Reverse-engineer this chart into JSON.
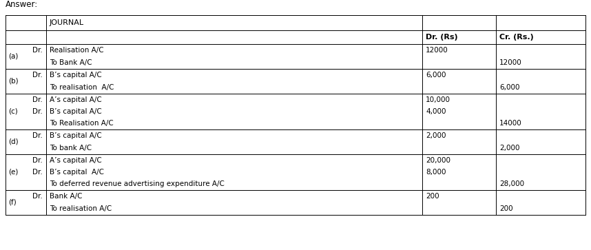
{
  "title": "Answer:",
  "header_label": "JOURNAL",
  "col_headers_dr": "Dr. (Rs)",
  "col_headers_cr": "Cr. (Rs.)",
  "rows": [
    {
      "label": "(a)",
      "entries": [
        {
          "text": "Realisation A/C",
          "dr_marker": "Dr.",
          "dr_val": "12000",
          "cr_val": ""
        },
        {
          "text": "To Bank A/C",
          "dr_marker": "",
          "dr_val": "",
          "cr_val": "12000"
        }
      ]
    },
    {
      "label": "(b)",
      "entries": [
        {
          "text": "B’s capital A/C",
          "dr_marker": "Dr.",
          "dr_val": "6,000",
          "cr_val": ""
        },
        {
          "text": "To realisation  A/C",
          "dr_marker": "",
          "dr_val": "",
          "cr_val": "6,000"
        }
      ]
    },
    {
      "label": "(c)",
      "entries": [
        {
          "text": "A’s capital A/C",
          "dr_marker": "Dr.",
          "dr_val": "10,000",
          "cr_val": ""
        },
        {
          "text": "B’s capital A/C",
          "dr_marker": "Dr.",
          "dr_val": "4,000",
          "cr_val": ""
        },
        {
          "text": "To Realisation A/C",
          "dr_marker": "",
          "dr_val": "",
          "cr_val": "14000"
        }
      ]
    },
    {
      "label": "(d)",
      "entries": [
        {
          "text": "B’s capital A/C",
          "dr_marker": "Dr.",
          "dr_val": "2,000",
          "cr_val": ""
        },
        {
          "text": "To bank A/C",
          "dr_marker": "",
          "dr_val": "",
          "cr_val": "2,000"
        }
      ]
    },
    {
      "label": "(e)",
      "entries": [
        {
          "text": "A’s capital A/C",
          "dr_marker": "Dr.",
          "dr_val": "20,000",
          "cr_val": ""
        },
        {
          "text": "B’s capital  A/C",
          "dr_marker": "Dr.",
          "dr_val": "8,000",
          "cr_val": ""
        },
        {
          "text": "To deferred revenue advertising expenditure A/C",
          "dr_marker": "",
          "dr_val": "",
          "cr_val": "28,000"
        }
      ]
    },
    {
      "label": "(f)",
      "entries": [
        {
          "text": "Bank A/C",
          "dr_marker": "Dr.",
          "dr_val": "200",
          "cr_val": ""
        },
        {
          "text": "To realisation A/C",
          "dr_marker": "",
          "dr_val": "",
          "cr_val": "200"
        }
      ]
    }
  ],
  "bg_color": "#ffffff",
  "border_color": "#000000",
  "font_size": 7.5,
  "header_font_size": 8.0,
  "answer_font_size": 8.5
}
